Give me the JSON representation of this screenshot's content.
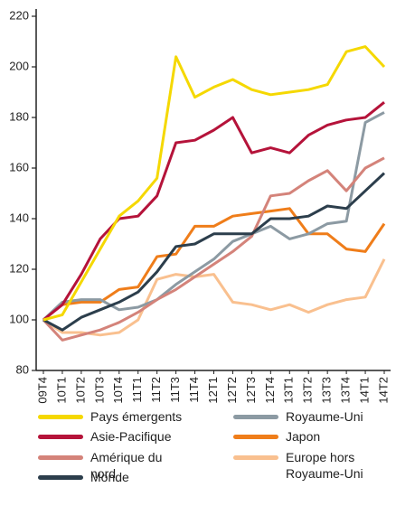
{
  "chart_data": {
    "type": "line",
    "categories": [
      "09T4",
      "10T1",
      "10T2",
      "10T3",
      "10T4",
      "11T1",
      "11T2",
      "11T3",
      "11T4",
      "12T1",
      "12T2",
      "12T3",
      "12T4",
      "13T1",
      "13T2",
      "13T3",
      "13T4",
      "14T1",
      "14T2"
    ],
    "ylim": [
      80,
      220
    ],
    "yticks": [
      80,
      100,
      120,
      140,
      160,
      180,
      200,
      220
    ],
    "series": [
      {
        "name": "Pays émergents",
        "color": "#f5d800",
        "values": [
          100,
          102,
          115,
          128,
          141,
          147,
          156,
          204,
          188,
          192,
          195,
          191,
          189,
          190,
          191,
          193,
          206,
          208,
          200
        ]
      },
      {
        "name": "Asie-Pacifique",
        "color": "#b5133a",
        "values": [
          100,
          106,
          118,
          132,
          140,
          141,
          149,
          170,
          171,
          175,
          180,
          166,
          168,
          166,
          173,
          177,
          179,
          180,
          186
        ]
      },
      {
        "name": "Amérique du nord",
        "color": "#d4837a",
        "values": [
          100,
          92,
          94,
          96,
          99,
          103,
          108,
          112,
          117,
          122,
          127,
          133,
          149,
          150,
          155,
          159,
          151,
          160,
          164
        ]
      },
      {
        "name": "Monde",
        "color": "#2c3e4c",
        "values": [
          100,
          96,
          101,
          104,
          107,
          111,
          119,
          129,
          130,
          134,
          134,
          134,
          140,
          140,
          141,
          145,
          144,
          151,
          158
        ]
      },
      {
        "name": "Royaume-Uni",
        "color": "#8c9aa3",
        "values": [
          100,
          107,
          108,
          108,
          104,
          105,
          108,
          114,
          119,
          124,
          131,
          134,
          137,
          132,
          134,
          138,
          139,
          178,
          182
        ]
      },
      {
        "name": "Japon",
        "color": "#ef7d1a",
        "values": [
          100,
          106,
          107,
          107,
          112,
          113,
          125,
          126,
          137,
          137,
          141,
          142,
          143,
          144,
          134,
          134,
          128,
          127,
          138
        ]
      },
      {
        "name": "Europe hors Royaume-Uni",
        "color": "#f9c08f",
        "values": [
          100,
          95,
          95,
          94,
          95,
          100,
          116,
          118,
          117,
          118,
          107,
          106,
          104,
          106,
          103,
          106,
          108,
          109,
          124
        ]
      }
    ]
  }
}
